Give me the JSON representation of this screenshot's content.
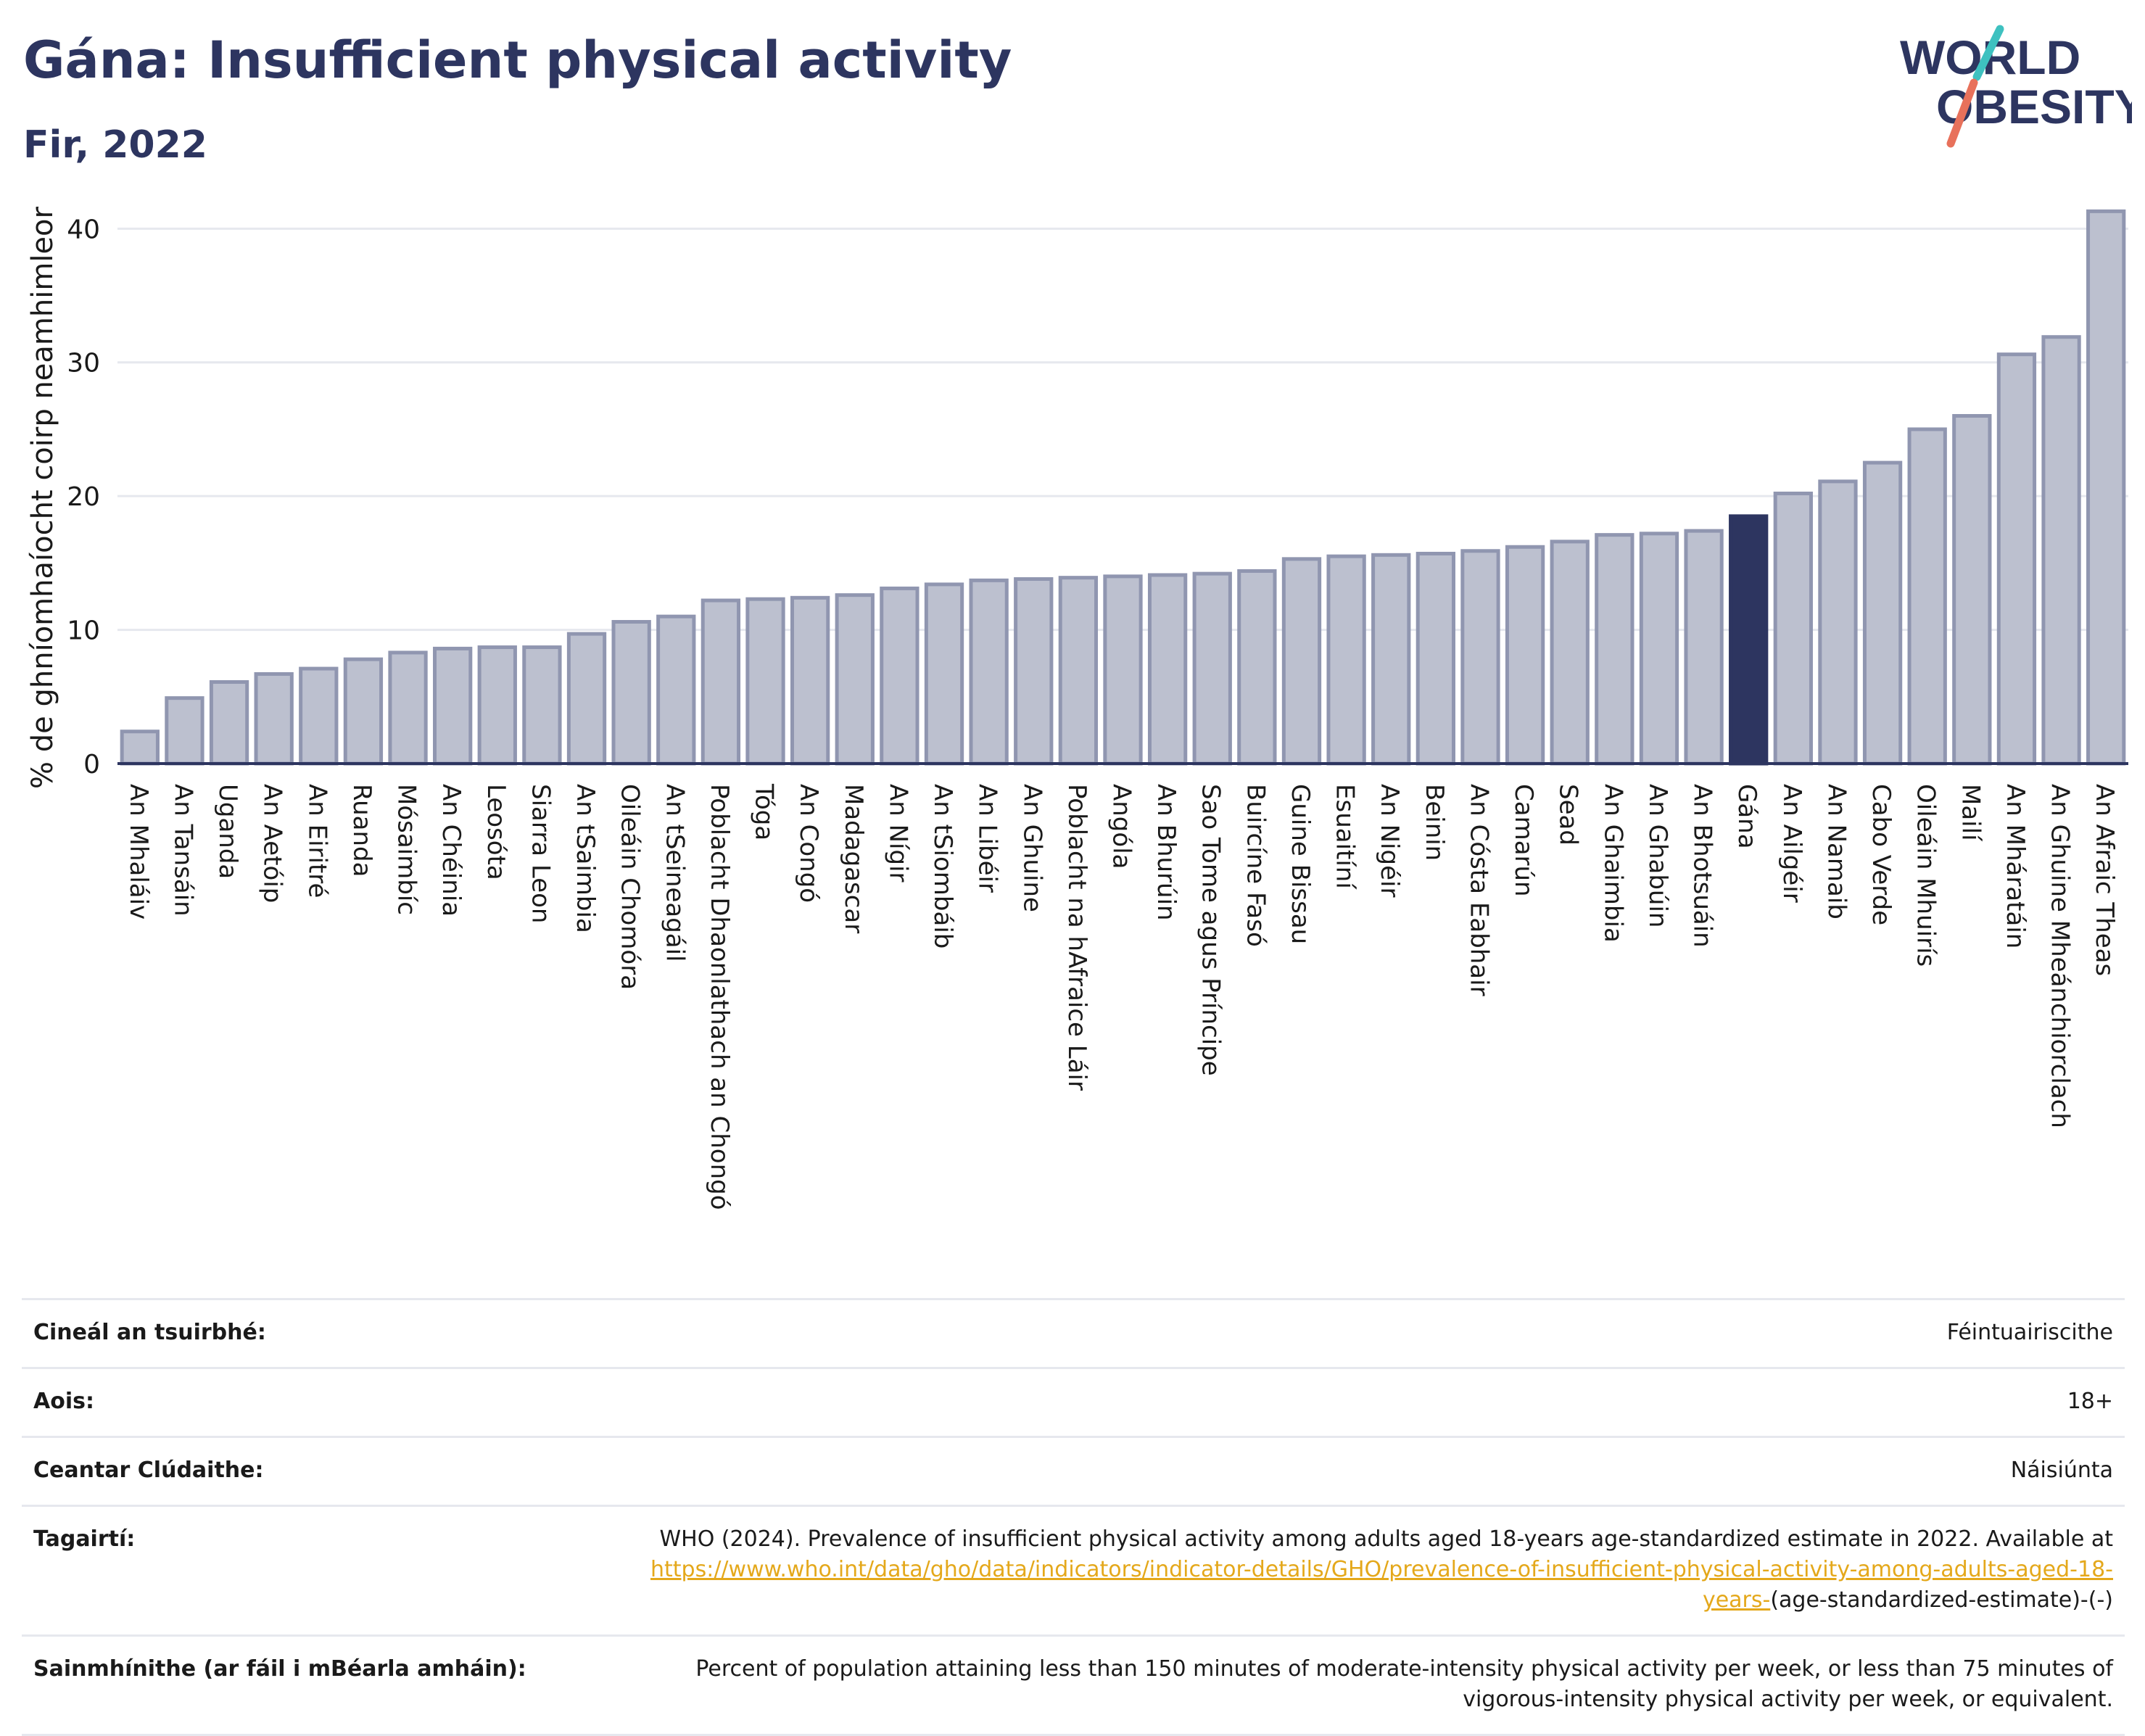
{
  "header": {
    "title": "Gána: Insufficient physical activity",
    "subtitle": "Fir, 2022"
  },
  "logo": {
    "line1": "WORLD",
    "line2": "OBESITY",
    "text_color": "#2d3560",
    "slash_top_color": "#3ec1c0",
    "slash_bottom_color": "#e8715b"
  },
  "colors": {
    "bar_fill": "#bcc0cf",
    "bar_stroke": "#9096b0",
    "highlight_fill": "#2d3560",
    "grid": "#e6e8ee",
    "axis_line": "#2d3560"
  },
  "chart_data": {
    "type": "bar",
    "title": "Gána: Insufficient physical activity",
    "subtitle": "Fir, 2022",
    "ylabel": "% de ghníomhaíocht coirp neamhimleor",
    "xlabel": "",
    "ylim": [
      0,
      43
    ],
    "yticks": [
      0,
      10,
      20,
      30,
      40
    ],
    "grid": true,
    "highlight": "Gána",
    "categories": [
      "An Mhaláiv",
      "An Tansáin",
      "Uganda",
      "An Aetóip",
      "An Eiritré",
      "Ruanda",
      "Mósaimbíc",
      "An Chéinia",
      "Leosóta",
      "Siarra Leon",
      "An tSaimbia",
      "Oileáin Chomóra",
      "An tSeineagáil",
      "Poblacht Dhaonlathach an Chongó",
      "Tóga",
      "An Congó",
      "Madagascar",
      "An Nígir",
      "An tSiombáib",
      "An Libéir",
      "An Ghuine",
      "Poblacht na hAfraice Láir",
      "Angóla",
      "An Bhurúin",
      "Sao Tome agus Príncipe",
      "Buircíne Fasó",
      "Guine Bissau",
      "Esuaitíní",
      "An Nigéir",
      "Beinin",
      "An Cósta Eabhair",
      "Camarún",
      "Sead",
      "An Ghaimbia",
      "An Ghabúin",
      "An Bhotsuáin",
      "Gána",
      "An Ailgéir",
      "An Namaib",
      "Cabo Verde",
      "Oileáin Mhuirís",
      "Mailí",
      "An Mháratáin",
      "An Ghuine Mheánchiorclach",
      "An Afraic Theas"
    ],
    "values": [
      2.4,
      4.9,
      6.1,
      6.7,
      7.1,
      7.8,
      8.3,
      8.6,
      8.7,
      8.7,
      9.7,
      10.6,
      11.0,
      12.2,
      12.3,
      12.4,
      12.6,
      13.1,
      13.4,
      13.7,
      13.8,
      13.9,
      14.0,
      14.1,
      14.2,
      14.4,
      15.3,
      15.5,
      15.6,
      15.7,
      15.9,
      16.2,
      16.6,
      17.1,
      17.2,
      17.4,
      18.5,
      20.2,
      21.1,
      22.5,
      25.0,
      26.0,
      30.6,
      31.9,
      41.3
    ]
  },
  "info": [
    {
      "label": "Cineál an tsuirbhé:",
      "value": "Féintuairiscithe"
    },
    {
      "label": "Aois:",
      "value": "18+"
    },
    {
      "label": "Ceantar Clúdaithe:",
      "value": "Náisiúnta"
    },
    {
      "label": "Tagairtí:",
      "value": "WHO (2024). Prevalence of insufficient physical activity among adults aged 18-years age-standardized estimate in 2022. Available at",
      "link": "https://www.who.int/data/gho/data/indicators/indicator-details/GHO/prevalence-of-insufficient-physical-activity-among-adults-aged-18-years-",
      "suffix": "(age-standardized-estimate)-(-)"
    },
    {
      "label": "Sainmhínithe (ar fáil i mBéarla amháin):",
      "value": "Percent of population attaining less than 150 minutes of moderate-intensity physical activity per week, or less than 75 minutes of vigorous-intensity physical activity per week, or equivalent."
    }
  ]
}
